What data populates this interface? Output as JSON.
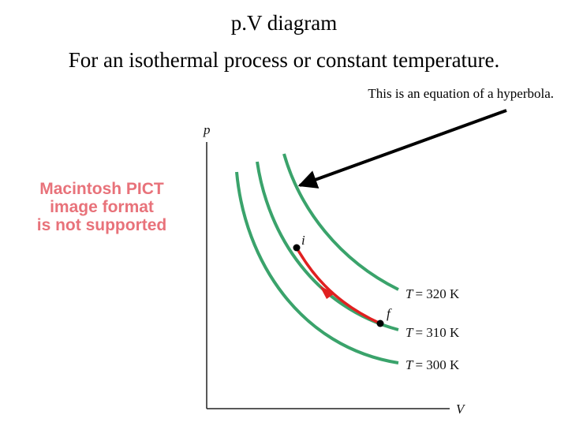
{
  "title": {
    "line1": "p.V diagram",
    "line2": "For an isothermal process or constant temperature."
  },
  "annotation": "This is an equation of a hyperbola.",
  "placeholder_image": {
    "line1": "Macintosh PICT",
    "line2": "image format",
    "line3": "is not supported"
  },
  "diagram": {
    "axes": {
      "y_label": "p",
      "x_label": "V"
    },
    "isotherms": [
      {
        "prefix": "T",
        "value": "= 320 K"
      },
      {
        "prefix": "T",
        "value": "= 310 K"
      },
      {
        "prefix": "T",
        "value": "= 300 K"
      }
    ],
    "points": {
      "initial": "i",
      "final": "f"
    },
    "colors": {
      "isotherm": "#3aa36b",
      "process": "#e02020",
      "arrow": "#000000",
      "placeholder_text": "#e8727a"
    }
  }
}
